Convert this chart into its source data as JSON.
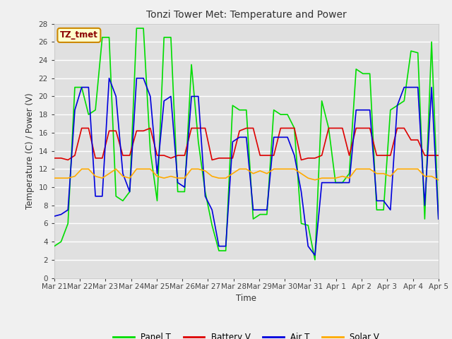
{
  "title": "Tonzi Tower Met: Temperature and Power",
  "ylabel": "Temperature (C) / Power (V)",
  "xlabel": "Time",
  "annotation": "TZ_tmet",
  "ylim": [
    0,
    28
  ],
  "yticks": [
    0,
    2,
    4,
    6,
    8,
    10,
    12,
    14,
    16,
    18,
    20,
    22,
    24,
    26,
    28
  ],
  "xtick_labels": [
    "Mar 21",
    "Mar 22",
    "Mar 23",
    "Mar 24",
    "Mar 25",
    "Mar 26",
    "Mar 27",
    "Mar 28",
    "Mar 29",
    "Mar 30",
    "Mar 31",
    "Apr 1",
    "Apr 2",
    "Apr 3",
    "Apr 4",
    "Apr 5"
  ],
  "fig_bg_color": "#f0f0f0",
  "bg_color": "#e0e0e0",
  "grid_color": "#ffffff",
  "panel_t_color": "#00dd00",
  "battery_v_color": "#dd0000",
  "air_t_color": "#0000dd",
  "solar_v_color": "#ffaa00",
  "panel_t": [
    3.5,
    4.0,
    6.0,
    21.0,
    21.0,
    18.0,
    18.5,
    26.5,
    26.5,
    9.0,
    8.5,
    9.5,
    27.5,
    27.5,
    14.0,
    8.5,
    26.5,
    26.5,
    9.5,
    9.5,
    23.5,
    15.0,
    9.5,
    5.8,
    3.0,
    3.0,
    19.0,
    18.5,
    18.5,
    6.5,
    7.0,
    7.0,
    18.5,
    18.0,
    18.0,
    16.5,
    6.0,
    5.8,
    2.0,
    19.5,
    16.5,
    10.5,
    10.5,
    11.5,
    23.0,
    22.5,
    22.5,
    7.5,
    7.5,
    18.5,
    19.0,
    19.5,
    25.0,
    24.8,
    6.5,
    26.0,
    6.5
  ],
  "battery_v": [
    13.2,
    13.2,
    13.0,
    13.5,
    16.5,
    16.5,
    13.2,
    13.2,
    16.2,
    16.2,
    13.5,
    13.5,
    16.2,
    16.2,
    16.5,
    13.5,
    13.5,
    13.2,
    13.5,
    13.5,
    16.5,
    16.5,
    16.5,
    13.0,
    13.2,
    13.2,
    13.2,
    16.2,
    16.5,
    16.5,
    13.5,
    13.5,
    13.5,
    16.5,
    16.5,
    16.5,
    13.0,
    13.2,
    13.2,
    13.5,
    16.5,
    16.5,
    16.5,
    13.5,
    16.5,
    16.5,
    16.5,
    13.5,
    13.5,
    13.5,
    16.5,
    16.5,
    15.2,
    15.2,
    13.5,
    13.5,
    13.5
  ],
  "air_t": [
    6.8,
    7.0,
    7.5,
    18.5,
    21.0,
    21.0,
    9.0,
    9.0,
    22.0,
    20.0,
    11.5,
    9.5,
    22.0,
    22.0,
    20.0,
    11.5,
    19.5,
    20.0,
    10.5,
    10.0,
    20.0,
    20.0,
    9.0,
    7.5,
    3.5,
    3.5,
    15.0,
    15.5,
    15.5,
    7.5,
    7.5,
    7.5,
    15.5,
    15.5,
    15.5,
    13.5,
    9.5,
    3.5,
    2.5,
    10.5,
    10.5,
    10.5,
    10.5,
    10.5,
    18.5,
    18.5,
    18.5,
    8.5,
    8.5,
    7.5,
    19.0,
    21.0,
    21.0,
    21.0,
    8.0,
    21.0,
    6.5
  ],
  "solar_v": [
    11.0,
    11.0,
    11.0,
    11.2,
    12.0,
    12.0,
    11.2,
    11.0,
    11.5,
    12.0,
    11.2,
    11.0,
    12.0,
    12.0,
    12.0,
    11.2,
    11.0,
    11.2,
    11.0,
    11.0,
    12.0,
    12.0,
    11.8,
    11.2,
    11.0,
    11.0,
    11.5,
    12.0,
    12.0,
    11.5,
    11.8,
    11.5,
    12.0,
    12.0,
    12.0,
    12.0,
    11.5,
    11.0,
    10.8,
    11.0,
    11.0,
    11.0,
    11.2,
    11.0,
    12.0,
    12.0,
    12.0,
    11.5,
    11.5,
    11.2,
    12.0,
    12.0,
    12.0,
    12.0,
    11.2,
    11.2,
    10.8
  ]
}
